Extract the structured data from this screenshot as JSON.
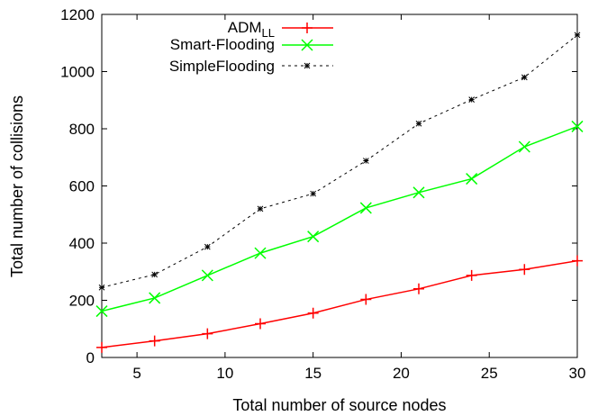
{
  "chart_data": {
    "type": "line",
    "title": "",
    "xlabel": "Total number of source nodes",
    "ylabel": "Total number of collisions",
    "xlim": [
      3,
      30
    ],
    "ylim": [
      0,
      1200
    ],
    "xticks": [
      5,
      10,
      15,
      20,
      25,
      30
    ],
    "yticks": [
      0,
      200,
      400,
      600,
      800,
      1000,
      1200
    ],
    "grid": false,
    "legend_position": "top-center",
    "x": [
      3,
      6,
      9,
      12,
      15,
      18,
      21,
      24,
      27,
      30
    ],
    "series": [
      {
        "name_main": "ADM",
        "name_sub": "LL",
        "color": "#ff0000",
        "marker": "plus",
        "line": "solid",
        "values": [
          35,
          58,
          83,
          118,
          155,
          203,
          240,
          287,
          308,
          338
        ]
      },
      {
        "name": "Smart-Flooding",
        "color": "#00ff00",
        "marker": "x",
        "line": "solid",
        "values": [
          162,
          208,
          287,
          365,
          423,
          523,
          577,
          625,
          737,
          808
        ]
      },
      {
        "name": "SimpleFlooding",
        "color": "#000000",
        "marker": "star",
        "line": "dashed",
        "values": [
          245,
          290,
          387,
          520,
          573,
          688,
          818,
          902,
          980,
          1128
        ]
      }
    ]
  }
}
